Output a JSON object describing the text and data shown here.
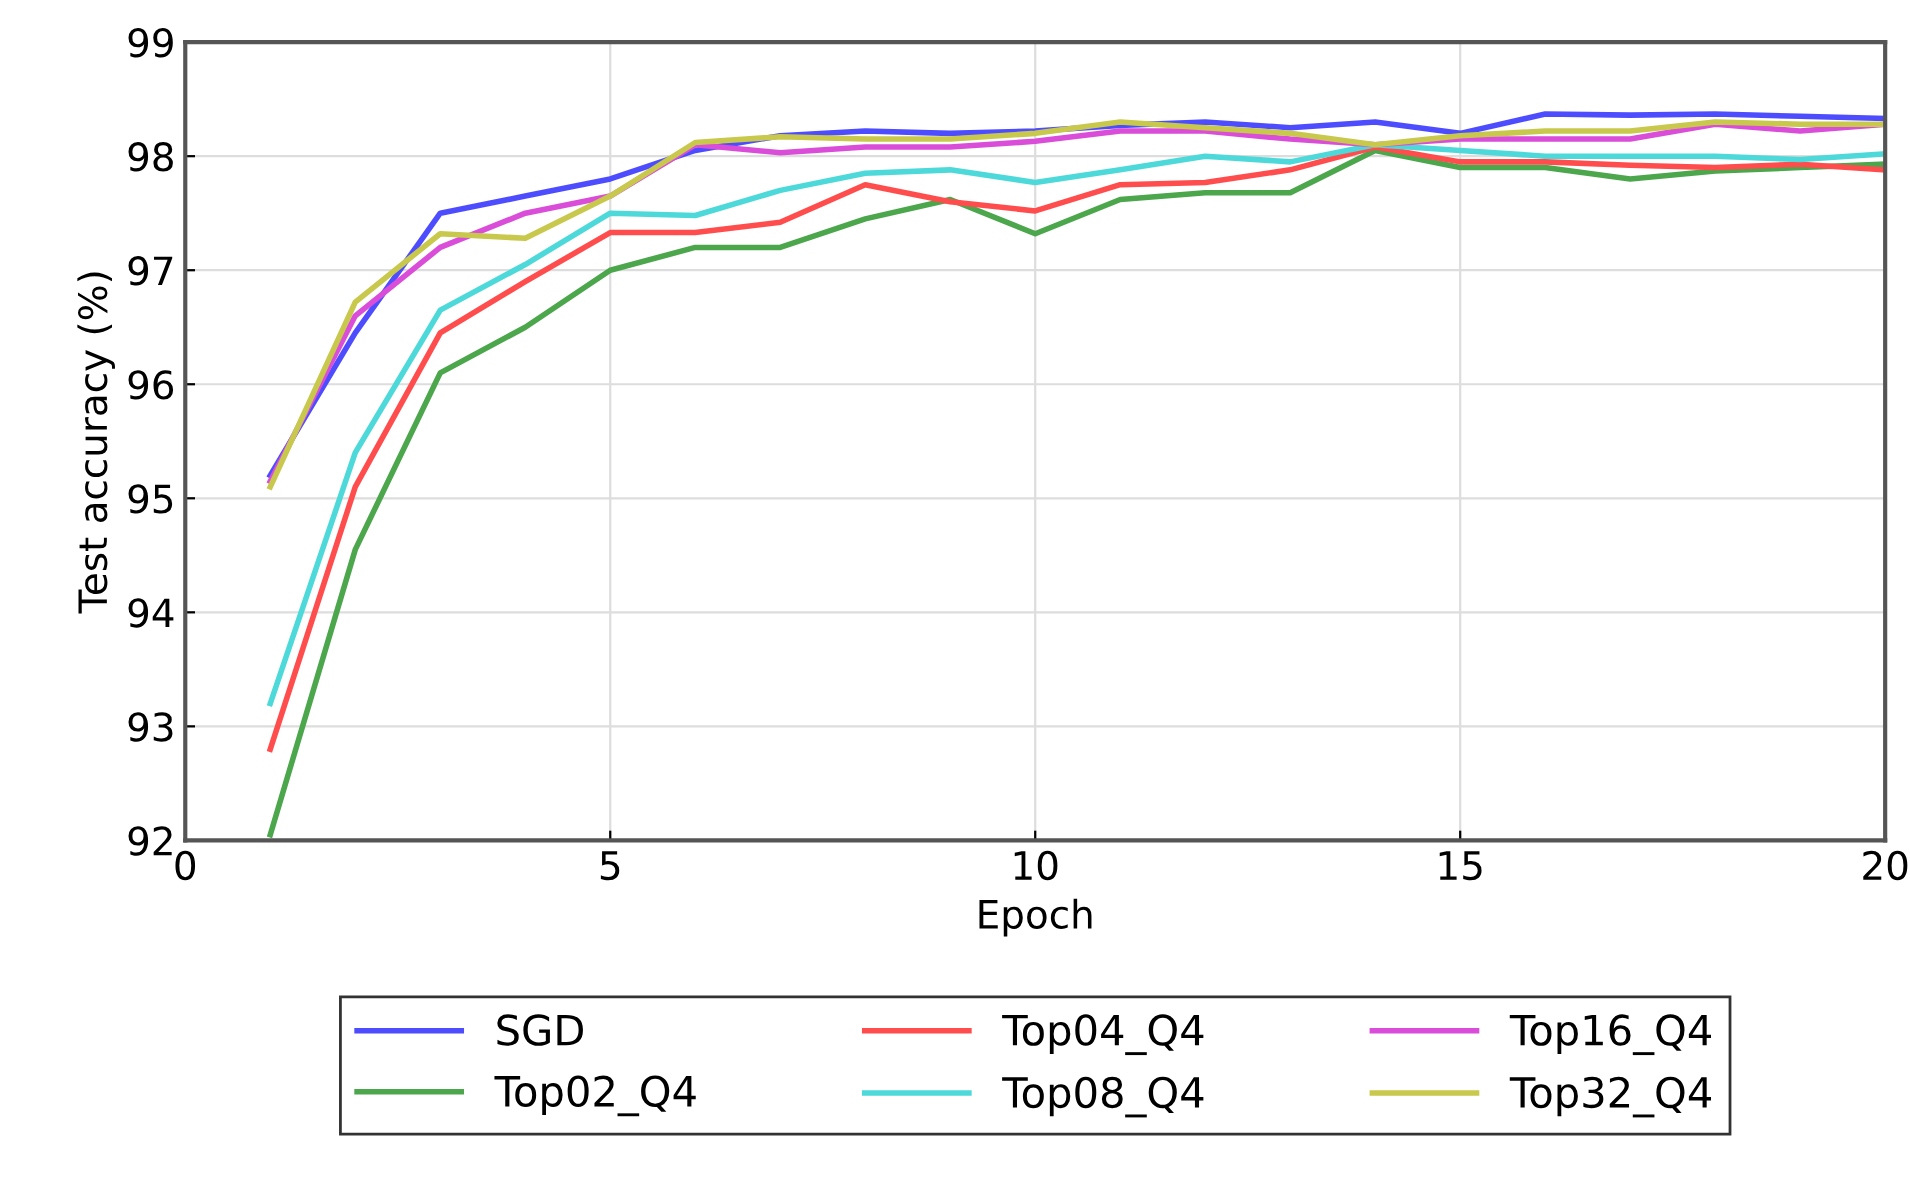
{
  "chart_data": {
    "type": "line",
    "xlabel": "Epoch",
    "ylabel": "Test accuracy (%)",
    "x": [
      1,
      2,
      3,
      4,
      5,
      6,
      7,
      8,
      9,
      10,
      11,
      12,
      13,
      14,
      15,
      16,
      17,
      18,
      19,
      20
    ],
    "xlim": [
      0,
      20
    ],
    "xticks": [
      0,
      5,
      10,
      15,
      20
    ],
    "ylim": [
      92,
      99
    ],
    "yticks": [
      92,
      93,
      94,
      95,
      96,
      97,
      98,
      99
    ],
    "grid": true,
    "legend": "bottom",
    "marker": "none",
    "line_style": "solid",
    "series": [
      {
        "name": "SGD",
        "color": "#4d4dff",
        "values": [
          95.2,
          96.45,
          97.5,
          97.65,
          97.8,
          98.05,
          98.18,
          98.22,
          98.2,
          98.22,
          98.27,
          98.3,
          98.25,
          98.3,
          98.2,
          98.37,
          98.36,
          98.37,
          98.35,
          98.33
        ]
      },
      {
        "name": "Top02_Q4",
        "color": "#4ca64c",
        "values": [
          92.05,
          94.55,
          96.1,
          96.5,
          97.0,
          97.2,
          97.2,
          97.45,
          97.62,
          97.32,
          97.62,
          97.68,
          97.68,
          98.05,
          97.9,
          97.9,
          97.8,
          97.87,
          97.9,
          97.93
        ]
      },
      {
        "name": "Top04_Q4",
        "color": "#ff4d4d",
        "values": [
          92.8,
          95.1,
          96.45,
          96.9,
          97.33,
          97.33,
          97.42,
          97.75,
          97.6,
          97.52,
          97.75,
          97.77,
          97.88,
          98.08,
          97.95,
          97.95,
          97.92,
          97.9,
          97.93,
          97.88
        ]
      },
      {
        "name": "Top08_Q4",
        "color": "#4dd9d9",
        "values": [
          93.2,
          95.4,
          96.65,
          97.05,
          97.5,
          97.48,
          97.7,
          97.85,
          97.88,
          97.77,
          97.88,
          98.0,
          97.95,
          98.1,
          98.05,
          98.0,
          98.0,
          98.0,
          97.97,
          98.02
        ]
      },
      {
        "name": "Top16_Q4",
        "color": "#d94dd9",
        "values": [
          95.15,
          96.6,
          97.2,
          97.5,
          97.65,
          98.1,
          98.03,
          98.08,
          98.08,
          98.13,
          98.22,
          98.22,
          98.15,
          98.1,
          98.15,
          98.15,
          98.15,
          98.28,
          98.22,
          98.28
        ]
      },
      {
        "name": "Top32_Q4",
        "color": "#c8c84d",
        "values": [
          95.1,
          96.72,
          97.32,
          97.28,
          97.65,
          98.12,
          98.17,
          98.15,
          98.15,
          98.2,
          98.3,
          98.25,
          98.2,
          98.1,
          98.18,
          98.22,
          98.22,
          98.3,
          98.28,
          98.28
        ]
      }
    ]
  }
}
